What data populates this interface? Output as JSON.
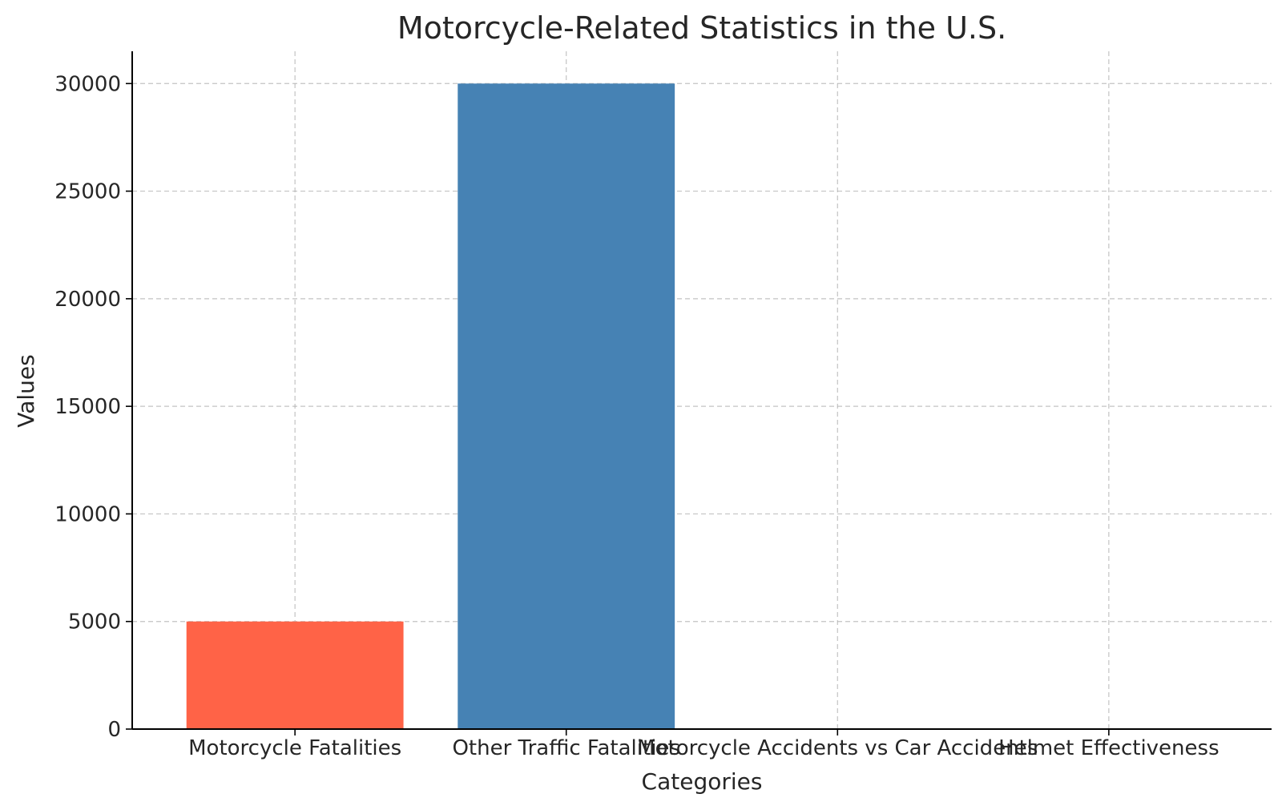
{
  "chart_data": {
    "type": "bar",
    "title": "Motorcycle-Related Statistics in the U.S.",
    "xlabel": "Categories",
    "ylabel": "Values",
    "categories": [
      "Motorcycle Fatalities",
      "Other Traffic Fatalities",
      "Motorcycle Accidents vs Car Accidents",
      "Helmet Effectiveness"
    ],
    "values": [
      5000,
      30000,
      0,
      37
    ],
    "colors": [
      "#FF6347",
      "#4682B4",
      "#32CD32",
      "#FFD700"
    ],
    "ylim": [
      0,
      31500
    ],
    "yticks": [
      0,
      5000,
      10000,
      15000,
      20000,
      25000,
      30000
    ],
    "grid": true,
    "legend": "none"
  }
}
